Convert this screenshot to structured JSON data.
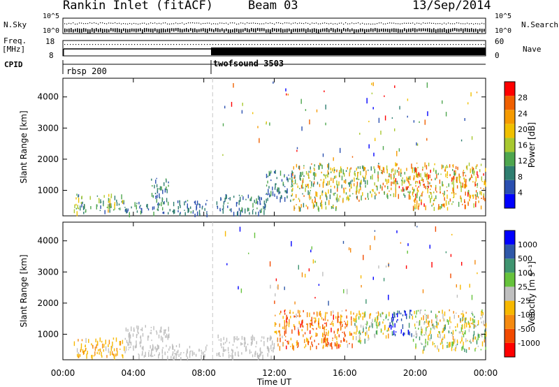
{
  "header": {
    "title": "Rankin Inlet (fitACF)",
    "beam": "Beam 03",
    "date": "13/Sep/2014"
  },
  "strip_labels": {
    "nsky": "N.Sky",
    "nsky_top": "10^5",
    "nsky_bot": "10^0",
    "nsearch": "N.Search",
    "nsearch_top": "10^5",
    "nsearch_bot": "10^0",
    "freq": "Freq.",
    "freq_unit": "[MHz]",
    "freq_top": "18",
    "freq_bot": "8",
    "nave": "Nave",
    "nave_top": "60",
    "nave_bot": "0",
    "cpid": "CPID",
    "cpid_1": "rbsp 200",
    "cpid_2": "twofsound 3503"
  },
  "colors": {
    "power": [
      "#0000ff",
      "#2a4fb0",
      "#2f7e70",
      "#4ea64e",
      "#a8c830",
      "#f0c000",
      "#f59a00",
      "#f06000",
      "#ff0000"
    ],
    "velocity": [
      "#ff0000",
      "#f24a00",
      "#f58a10",
      "#f7b800",
      "#bfbfbf",
      "#66c23c",
      "#3f9470",
      "#2f58a8",
      "#0000ff"
    ]
  },
  "chart_data": [
    {
      "type": "heatmap",
      "name": "power",
      "ylabel": "Slant Range [km]",
      "xlabel": "",
      "x_ticks": [
        "00:00",
        "04:00",
        "08:00",
        "12:00",
        "16:00",
        "20:00",
        "00:00"
      ],
      "x_range_hours": [
        0,
        24
      ],
      "y_ticks": [
        1000,
        2000,
        3000,
        4000
      ],
      "y_range": [
        180,
        4600
      ],
      "colorbar_label": "Power [dB]",
      "colorbar_ticks": [
        "4",
        "8",
        "12",
        "16",
        "20",
        "24",
        "28"
      ],
      "colorbar_range": [
        0,
        32
      ],
      "cpid_change_hour": 8.5,
      "bands": [
        {
          "x": [
            0.6,
            1.6
          ],
          "y": [
            300,
            900
          ],
          "value": [
            6,
            20
          ]
        },
        {
          "x": [
            1.8,
            3.5
          ],
          "y": [
            350,
            900
          ],
          "value": [
            6,
            22
          ]
        },
        {
          "x": [
            3.5,
            5.0
          ],
          "y": [
            300,
            650
          ],
          "value": [
            4,
            14
          ]
        },
        {
          "x": [
            5.0,
            6.0
          ],
          "y": [
            300,
            1400
          ],
          "value": [
            4,
            14
          ]
        },
        {
          "x": [
            6.0,
            8.2
          ],
          "y": [
            250,
            700
          ],
          "value": [
            4,
            12
          ]
        },
        {
          "x": [
            8.7,
            11.5
          ],
          "y": [
            300,
            900
          ],
          "value": [
            4,
            12
          ]
        },
        {
          "x": [
            11.5,
            13.0
          ],
          "y": [
            700,
            1700
          ],
          "value": [
            4,
            14
          ]
        },
        {
          "x": [
            13.0,
            15.5
          ],
          "y": [
            450,
            1900
          ],
          "value": [
            8,
            26
          ]
        },
        {
          "x": [
            15.5,
            17.8
          ],
          "y": [
            700,
            1800
          ],
          "value": [
            8,
            26
          ]
        },
        {
          "x": [
            17.8,
            19.8
          ],
          "y": [
            800,
            1900
          ],
          "value": [
            10,
            30
          ]
        },
        {
          "x": [
            19.8,
            24.0
          ],
          "y": [
            450,
            1900
          ],
          "value": [
            12,
            30
          ]
        }
      ]
    },
    {
      "type": "heatmap",
      "name": "velocity",
      "ylabel": "Slant Range [km]",
      "xlabel": "Time UT",
      "x_ticks": [
        "00:00",
        "04:00",
        "08:00",
        "12:00",
        "16:00",
        "20:00",
        "00:00"
      ],
      "x_range_hours": [
        0,
        24
      ],
      "y_ticks": [
        1000,
        2000,
        3000,
        4000
      ],
      "y_range": [
        180,
        4600
      ],
      "colorbar_label": "Velocity [m s⁻¹]",
      "colorbar_ticks": [
        "-1000",
        "-500",
        "-100",
        "-25",
        "25",
        "100",
        "500",
        "1000"
      ],
      "colorbar_range": [
        -1200,
        1200
      ],
      "bands": [
        {
          "x": [
            0.6,
            3.5
          ],
          "y": [
            300,
            900
          ],
          "value": [
            -500,
            -100
          ]
        },
        {
          "x": [
            3.5,
            6.0
          ],
          "y": [
            300,
            1300
          ],
          "value": [
            -100,
            100
          ]
        },
        {
          "x": [
            6.0,
            8.2
          ],
          "y": [
            250,
            700
          ],
          "value": [
            -100,
            25
          ]
        },
        {
          "x": [
            8.7,
            12.0
          ],
          "y": [
            300,
            1000
          ],
          "value": [
            -100,
            25
          ]
        },
        {
          "x": [
            12.0,
            16.5
          ],
          "y": [
            600,
            1800
          ],
          "value": [
            -1000,
            -100
          ]
        },
        {
          "x": [
            16.5,
            18.5
          ],
          "y": [
            800,
            1800
          ],
          "value": [
            -500,
            500
          ]
        },
        {
          "x": [
            18.5,
            19.8
          ],
          "y": [
            1000,
            1800
          ],
          "value": [
            500,
            1200
          ]
        },
        {
          "x": [
            19.8,
            24.0
          ],
          "y": [
            500,
            1800
          ],
          "value": [
            -500,
            500
          ]
        }
      ]
    }
  ]
}
